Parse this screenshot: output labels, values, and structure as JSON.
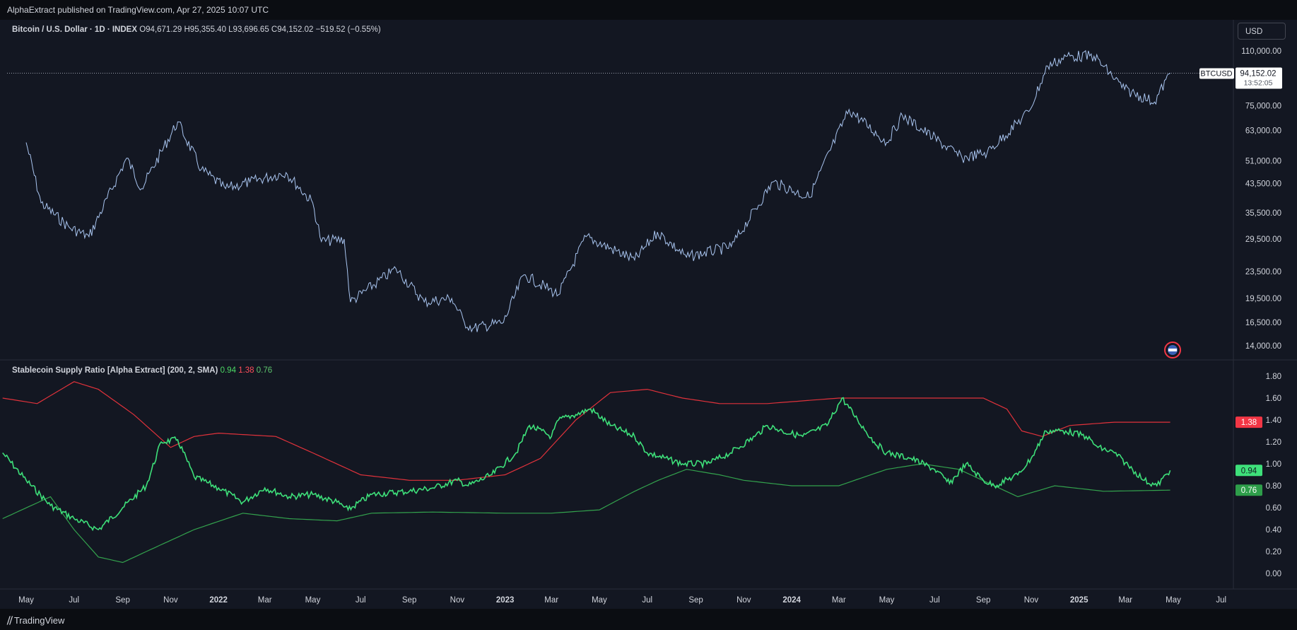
{
  "header": {
    "published": "AlphaExtract published on TradingView.com, Apr 27, 2025 10:07 UTC"
  },
  "main_legend": {
    "symbol": "Bitcoin / U.S. Dollar · 1D · INDEX",
    "ohlc": "O94,671.29  H95,355.40  L93,696.65  C94,152.02  −519.52 (−0.55%)"
  },
  "currency_button": "USD",
  "price_tag": {
    "symbol": "BTCUSD",
    "price": "94,152.02",
    "countdown": "13:52:05"
  },
  "indicator_legend": {
    "name": "Stablecoin Supply Ratio [Alpha Extract] (200, 2, SMA)",
    "v1": "0.94",
    "v2": "1.38",
    "v3": "0.76"
  },
  "footer": {
    "brand": "TradingView"
  },
  "colors": {
    "price": "#a8c4ef",
    "ssr": "#3ee07a",
    "upper": "#e0323b",
    "lower": "#33a24d",
    "tag_red": "#f23645",
    "tag_green": "#3ee07a",
    "tag_lgreen": "#2e9e4a"
  },
  "chart_data": [
    {
      "type": "line",
      "title": "Bitcoin / U.S. Dollar · 1D · INDEX",
      "scale": "log",
      "x": [
        "2021-05-01",
        "2021-05-20",
        "2021-06-25",
        "2021-07-20",
        "2021-09-06",
        "2021-09-25",
        "2021-11-10",
        "2021-12-10",
        "2022-01-10",
        "2022-02-10",
        "2022-03-28",
        "2022-05-01",
        "2022-05-12",
        "2022-06-10",
        "2022-06-18",
        "2022-08-15",
        "2022-09-20",
        "2022-10-25",
        "2022-11-10",
        "2022-11-21",
        "2022-12-30",
        "2023-01-25",
        "2023-03-10",
        "2023-04-14",
        "2023-06-15",
        "2023-07-14",
        "2023-08-20",
        "2023-10-16",
        "2023-12-08",
        "2024-01-23",
        "2024-03-14",
        "2024-05-01",
        "2024-05-21",
        "2024-08-05",
        "2024-09-06",
        "2024-10-29",
        "2024-11-22",
        "2024-12-17",
        "2025-01-20",
        "2025-02-28",
        "2025-04-07",
        "2025-04-27"
      ],
      "y": [
        58000,
        38000,
        32000,
        30000,
        52000,
        42000,
        67000,
        48000,
        42000,
        44000,
        47000,
        38000,
        29000,
        29500,
        19000,
        24000,
        19000,
        19500,
        16500,
        15800,
        16500,
        23000,
        20000,
        30000,
        25500,
        31000,
        26000,
        28000,
        44000,
        39500,
        73000,
        58000,
        70000,
        52000,
        54000,
        72000,
        99000,
        106000,
        106000,
        84000,
        77000,
        94152
      ],
      "yticks": [
        "110,000.00",
        "75,000.00",
        "63,000.00",
        "51,000.00",
        "43,500.00",
        "35,500.00",
        "29,500.00",
        "23,500.00",
        "19,500.00",
        "16,500.00",
        "14,000.00"
      ],
      "ytick_values": [
        110000,
        75000,
        63000,
        51000,
        43500,
        35500,
        29500,
        23500,
        19500,
        16500,
        14000
      ],
      "xticks": [
        "May",
        "Jul",
        "Sep",
        "Nov",
        "2022",
        "Mar",
        "May",
        "Jul",
        "Sep",
        "Nov",
        "2023",
        "Mar",
        "May",
        "Jul",
        "Sep",
        "Nov",
        "2024",
        "Mar",
        "May",
        "Jul",
        "Sep",
        "Nov",
        "2025",
        "Mar",
        "May",
        "Jul"
      ],
      "xtick_dates": [
        "2021-05-01",
        "2021-07-01",
        "2021-09-01",
        "2021-11-01",
        "2022-01-01",
        "2022-03-01",
        "2022-05-01",
        "2022-07-01",
        "2022-09-01",
        "2022-11-01",
        "2023-01-01",
        "2023-03-01",
        "2023-05-01",
        "2023-07-01",
        "2023-09-01",
        "2023-11-01",
        "2024-01-01",
        "2024-03-01",
        "2024-05-01",
        "2024-07-01",
        "2024-09-01",
        "2024-11-01",
        "2025-01-01",
        "2025-03-01",
        "2025-05-01",
        "2025-07-01"
      ],
      "last_price": 94152.02
    },
    {
      "type": "line",
      "title": "Stablecoin Supply Ratio [Alpha Extract] (200, 2, SMA)",
      "yticks": [
        "1.80",
        "1.60",
        "1.40",
        "1.20",
        "1.00",
        "0.80",
        "0.60",
        "0.40",
        "0.20",
        "0.00"
      ],
      "ytick_values": [
        1.8,
        1.6,
        1.4,
        1.2,
        1.0,
        0.8,
        0.6,
        0.4,
        0.2,
        0.0
      ],
      "series": [
        {
          "name": "ratio",
          "x": [
            "2021-04-01",
            "2021-05-01",
            "2021-06-01",
            "2021-07-01",
            "2021-08-01",
            "2021-09-01",
            "2021-10-01",
            "2021-10-20",
            "2021-11-10",
            "2021-12-01",
            "2022-01-01",
            "2022-02-01",
            "2022-03-01",
            "2022-04-01",
            "2022-05-01",
            "2022-06-01",
            "2022-06-15",
            "2022-07-15",
            "2022-09-01",
            "2022-10-01",
            "2022-11-01",
            "2022-11-15",
            "2022-12-15",
            "2023-01-15",
            "2023-02-01",
            "2023-03-01",
            "2023-03-10",
            "2023-04-01",
            "2023-04-20",
            "2023-05-15",
            "2023-06-15",
            "2023-07-01",
            "2023-08-15",
            "2023-09-15",
            "2023-10-15",
            "2023-11-15",
            "2023-12-01",
            "2023-12-20",
            "2024-01-15",
            "2024-02-15",
            "2024-03-05",
            "2024-03-25",
            "2024-04-15",
            "2024-05-01",
            "2024-06-01",
            "2024-07-01",
            "2024-07-20",
            "2024-08-10",
            "2024-09-01",
            "2024-09-15",
            "2024-10-15",
            "2024-11-01",
            "2024-11-20",
            "2024-12-15",
            "2025-01-10",
            "2025-01-25",
            "2025-02-15",
            "2025-03-10",
            "2025-03-25",
            "2025-04-10",
            "2025-04-27"
          ],
          "y": [
            1.1,
            0.85,
            0.62,
            0.5,
            0.4,
            0.6,
            0.8,
            1.2,
            1.22,
            0.88,
            0.78,
            0.65,
            0.78,
            0.7,
            0.72,
            0.65,
            0.58,
            0.72,
            0.75,
            0.78,
            0.85,
            0.8,
            0.9,
            1.1,
            1.35,
            1.25,
            1.4,
            1.45,
            1.5,
            1.35,
            1.25,
            1.1,
            1.0,
            1.0,
            1.1,
            1.25,
            1.35,
            1.3,
            1.25,
            1.35,
            1.6,
            1.4,
            1.2,
            1.1,
            1.05,
            0.95,
            0.82,
            1.0,
            0.85,
            0.8,
            0.9,
            1.05,
            1.3,
            1.3,
            1.25,
            1.15,
            1.1,
            0.95,
            0.85,
            0.8,
            0.94
          ]
        },
        {
          "name": "upper",
          "x": [
            "2021-04-01",
            "2021-05-15",
            "2021-07-01",
            "2021-08-01",
            "2021-09-15",
            "2021-11-01",
            "2021-12-01",
            "2022-01-01",
            "2022-03-15",
            "2022-05-01",
            "2022-07-01",
            "2022-09-01",
            "2022-11-01",
            "2023-01-01",
            "2023-02-15",
            "2023-04-01",
            "2023-05-15",
            "2023-07-01",
            "2023-08-15",
            "2023-10-01",
            "2023-12-01",
            "2024-03-01",
            "2024-05-01",
            "2024-07-01",
            "2024-09-01",
            "2024-10-01",
            "2024-10-20",
            "2024-11-15",
            "2024-12-20",
            "2025-02-15",
            "2025-04-27"
          ],
          "y": [
            1.6,
            1.55,
            1.75,
            1.68,
            1.45,
            1.15,
            1.25,
            1.28,
            1.25,
            1.1,
            0.9,
            0.85,
            0.85,
            0.9,
            1.05,
            1.4,
            1.65,
            1.68,
            1.6,
            1.55,
            1.55,
            1.6,
            1.6,
            1.6,
            1.6,
            1.5,
            1.3,
            1.25,
            1.35,
            1.38,
            1.38
          ]
        },
        {
          "name": "lower",
          "x": [
            "2021-04-01",
            "2021-06-01",
            "2021-07-01",
            "2021-08-01",
            "2021-09-01",
            "2021-10-01",
            "2021-12-01",
            "2022-02-01",
            "2022-04-01",
            "2022-06-01",
            "2022-07-15",
            "2022-10-01",
            "2023-01-01",
            "2023-03-01",
            "2023-05-01",
            "2023-06-15",
            "2023-07-15",
            "2023-08-20",
            "2023-10-01",
            "2023-11-01",
            "2024-01-01",
            "2024-03-01",
            "2024-05-01",
            "2024-06-15",
            "2024-08-01",
            "2024-09-15",
            "2024-10-15",
            "2024-12-01",
            "2025-02-01",
            "2025-04-27"
          ],
          "y": [
            0.5,
            0.7,
            0.4,
            0.15,
            0.1,
            0.2,
            0.4,
            0.55,
            0.5,
            0.48,
            0.55,
            0.56,
            0.55,
            0.55,
            0.58,
            0.75,
            0.85,
            0.95,
            0.9,
            0.85,
            0.8,
            0.8,
            0.95,
            1.0,
            0.95,
            0.8,
            0.7,
            0.8,
            0.75,
            0.76
          ]
        }
      ]
    }
  ]
}
